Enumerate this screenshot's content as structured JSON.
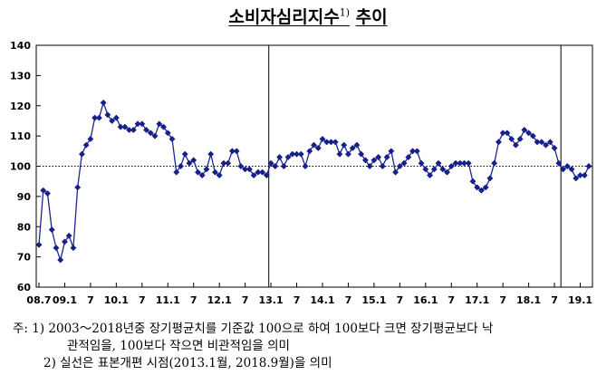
{
  "title": {
    "main": "소비자심리지수",
    "sup": "1)",
    "suffix": "추이"
  },
  "chart_data": {
    "type": "line",
    "ylim": [
      60,
      140
    ],
    "yticks": [
      60,
      70,
      80,
      90,
      100,
      110,
      120,
      130,
      140
    ],
    "reference_line": 100,
    "xtick_labels": [
      "08.7",
      "09.1",
      "7",
      "10.1",
      "7",
      "11.1",
      "7",
      "12.1",
      "7",
      "13.1",
      "7",
      "14.1",
      "7",
      "15.1",
      "7",
      "16.1",
      "7",
      "17.1",
      "7",
      "18.1",
      "7",
      "19.1"
    ],
    "xtick_start_index": 0,
    "xtick_step_months": 6,
    "break_lines_at_index": [
      54,
      122
    ],
    "series": [
      {
        "x_start": "2008.7",
        "values": [
          74,
          92,
          91,
          79,
          73,
          69,
          75,
          77,
          73,
          93,
          104,
          107,
          109,
          116,
          116,
          121,
          117,
          115,
          116,
          113,
          113,
          112,
          112,
          114,
          114,
          112,
          111,
          110,
          114,
          113,
          111,
          109,
          98,
          100,
          104,
          101,
          102,
          98,
          97,
          99,
          104,
          98,
          97,
          101,
          101,
          105,
          105,
          100,
          99,
          99,
          97,
          98,
          98,
          97,
          101,
          100,
          103,
          100,
          103,
          104,
          104,
          104,
          100,
          105,
          107,
          106,
          109,
          108,
          108,
          108,
          104,
          107,
          104,
          106,
          107,
          104,
          102,
          100,
          102,
          103,
          100,
          103,
          105,
          98,
          100,
          101,
          103,
          105,
          105,
          101,
          99,
          97,
          99,
          101,
          99,
          98,
          100,
          101,
          101,
          101,
          101,
          95,
          93,
          92,
          93,
          96,
          101,
          108,
          111,
          111,
          109,
          107,
          109,
          112,
          111,
          110,
          108,
          108,
          107,
          108,
          106,
          101,
          99,
          100,
          99,
          96,
          97,
          97,
          100
        ]
      }
    ]
  },
  "notes": [
    "주:  1)  2003～2018년중 장기평균치를 기준값 100으로 하여 100보다 크면 장기평균보다 낙",
    "관적임을, 100보다 작으면 비관적임을 의미",
    "2)  실선은 표본개편 시점(2013.1월, 2018.9월)을 의미"
  ]
}
